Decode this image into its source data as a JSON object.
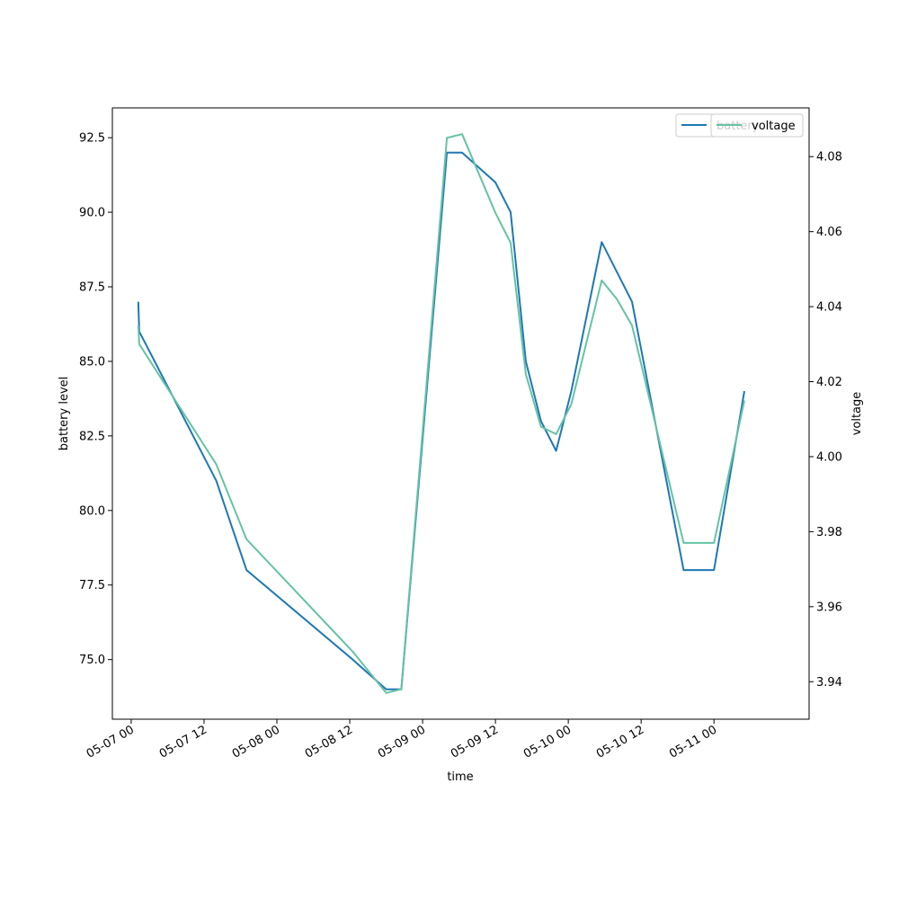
{
  "chart_data": {
    "type": "line",
    "xlabel": "time",
    "ylabel_left": "battery level",
    "ylabel_right": "voltage",
    "x_range": [
      "2023-05-06T20:54",
      "2023-05-11T15:40"
    ],
    "ylim_left": [
      73.0,
      93.5
    ],
    "ylim_right": [
      3.93,
      4.093
    ],
    "x_ticks": [
      {
        "t": "2023-05-07T00:00",
        "label": "05-07 00"
      },
      {
        "t": "2023-05-07T12:00",
        "label": "05-07 12"
      },
      {
        "t": "2023-05-08T00:00",
        "label": "05-08 00"
      },
      {
        "t": "2023-05-08T12:00",
        "label": "05-08 12"
      },
      {
        "t": "2023-05-09T00:00",
        "label": "05-09 00"
      },
      {
        "t": "2023-05-09T12:00",
        "label": "05-09 12"
      },
      {
        "t": "2023-05-10T00:00",
        "label": "05-10 00"
      },
      {
        "t": "2023-05-10T12:00",
        "label": "05-10 12"
      },
      {
        "t": "2023-05-11T00:00",
        "label": "05-11 00"
      }
    ],
    "y_ticks_left": [
      {
        "v": 75.0,
        "label": "75.0"
      },
      {
        "v": 77.5,
        "label": "77.5"
      },
      {
        "v": 80.0,
        "label": "80.0"
      },
      {
        "v": 82.5,
        "label": "82.5"
      },
      {
        "v": 85.0,
        "label": "85.0"
      },
      {
        "v": 87.5,
        "label": "87.5"
      },
      {
        "v": 90.0,
        "label": "90.0"
      },
      {
        "v": 92.5,
        "label": "92.5"
      }
    ],
    "y_ticks_right": [
      {
        "v": 3.94,
        "label": "3.94"
      },
      {
        "v": 3.96,
        "label": "3.96"
      },
      {
        "v": 3.98,
        "label": "3.98"
      },
      {
        "v": 4.0,
        "label": "4.00"
      },
      {
        "v": 4.02,
        "label": "4.02"
      },
      {
        "v": 4.04,
        "label": "4.04"
      },
      {
        "v": 4.06,
        "label": "4.06"
      },
      {
        "v": 4.08,
        "label": "4.08"
      }
    ],
    "series": [
      {
        "name": "battery",
        "axis": "left",
        "color": "#1f77b4",
        "points": [
          {
            "t": "2023-05-07T01:10",
            "v": 87.0
          },
          {
            "t": "2023-05-07T01:20",
            "v": 86.0
          },
          {
            "t": "2023-05-07T14:00",
            "v": 81.0
          },
          {
            "t": "2023-05-07T19:00",
            "v": 78.0
          },
          {
            "t": "2023-05-08T12:30",
            "v": 75.0
          },
          {
            "t": "2023-05-08T18:00",
            "v": 74.0
          },
          {
            "t": "2023-05-08T20:30",
            "v": 74.0
          },
          {
            "t": "2023-05-09T04:00",
            "v": 92.0
          },
          {
            "t": "2023-05-09T06:30",
            "v": 92.0
          },
          {
            "t": "2023-05-09T12:00",
            "v": 91.0
          },
          {
            "t": "2023-05-09T14:30",
            "v": 90.0
          },
          {
            "t": "2023-05-09T17:00",
            "v": 85.0
          },
          {
            "t": "2023-05-09T19:30",
            "v": 83.0
          },
          {
            "t": "2023-05-09T22:00",
            "v": 82.0
          },
          {
            "t": "2023-05-10T00:30",
            "v": 84.0
          },
          {
            "t": "2023-05-10T05:30",
            "v": 89.0
          },
          {
            "t": "2023-05-10T10:30",
            "v": 87.0
          },
          {
            "t": "2023-05-10T19:00",
            "v": 78.0
          },
          {
            "t": "2023-05-11T00:00",
            "v": 78.0
          },
          {
            "t": "2023-05-11T05:00",
            "v": 84.0
          }
        ]
      },
      {
        "name": "voltage",
        "axis": "right",
        "color": "#66c2a5",
        "points": [
          {
            "t": "2023-05-07T01:10",
            "v": 4.035
          },
          {
            "t": "2023-05-07T01:20",
            "v": 4.03
          },
          {
            "t": "2023-05-07T14:00",
            "v": 3.998
          },
          {
            "t": "2023-05-07T19:00",
            "v": 3.978
          },
          {
            "t": "2023-05-08T12:30",
            "v": 3.948
          },
          {
            "t": "2023-05-08T18:00",
            "v": 3.937
          },
          {
            "t": "2023-05-08T20:30",
            "v": 3.938
          },
          {
            "t": "2023-05-09T04:00",
            "v": 4.085
          },
          {
            "t": "2023-05-09T06:30",
            "v": 4.086
          },
          {
            "t": "2023-05-09T12:00",
            "v": 4.065
          },
          {
            "t": "2023-05-09T14:30",
            "v": 4.057
          },
          {
            "t": "2023-05-09T17:00",
            "v": 4.022
          },
          {
            "t": "2023-05-09T19:30",
            "v": 4.008
          },
          {
            "t": "2023-05-09T22:00",
            "v": 4.006
          },
          {
            "t": "2023-05-10T00:30",
            "v": 4.014
          },
          {
            "t": "2023-05-10T05:30",
            "v": 4.047
          },
          {
            "t": "2023-05-10T08:00",
            "v": 4.042
          },
          {
            "t": "2023-05-10T10:30",
            "v": 4.035
          },
          {
            "t": "2023-05-10T19:00",
            "v": 3.977
          },
          {
            "t": "2023-05-11T00:00",
            "v": 3.977
          },
          {
            "t": "2023-05-11T05:00",
            "v": 4.015
          }
        ]
      }
    ],
    "legend_left": {
      "label": "battery",
      "placement": "upper-right"
    },
    "legend_right": {
      "label": "voltage",
      "placement": "upper-right"
    },
    "grid": false
  }
}
